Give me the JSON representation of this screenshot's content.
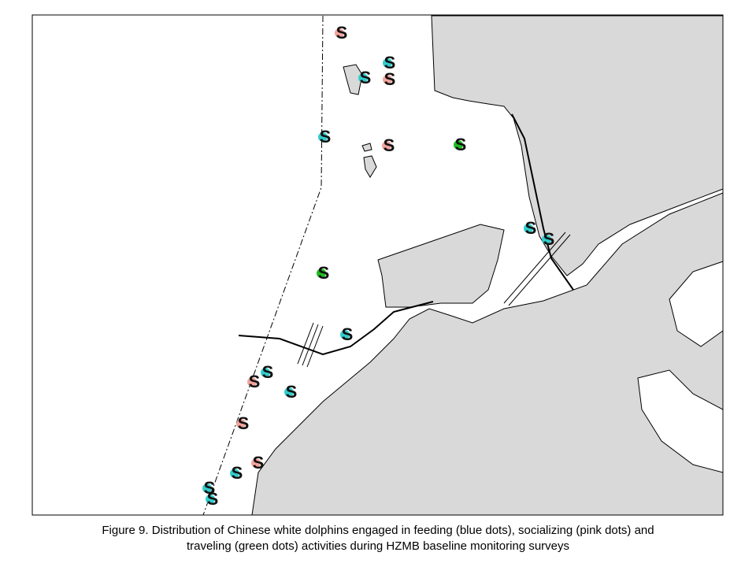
{
  "caption": {
    "line1": "Figure 9.  Distribution of Chinese white dolphins engaged in feeding (blue dots), socializing (pink dots) and",
    "line2": "traveling (green dots) activities during HZMB baseline monitoring surveys"
  },
  "sightings": [
    {
      "label": "S",
      "color": "#f2a49c"
    },
    {
      "label": "S",
      "color": "#33cccc"
    },
    {
      "label": "S",
      "color": "#33cccc"
    },
    {
      "label": "S",
      "color": "#f2a49c"
    },
    {
      "label": "S",
      "color": "#33cccc"
    },
    {
      "label": "S",
      "color": "#f2a49c"
    },
    {
      "label": "S",
      "color": "#22bb22"
    },
    {
      "label": "S",
      "color": "#33cccc"
    },
    {
      "label": "S",
      "color": "#33cccc"
    },
    {
      "label": "S",
      "color": "#22bb22"
    },
    {
      "label": "S",
      "color": "#33cccc"
    },
    {
      "label": "S",
      "color": "#33cccc"
    },
    {
      "label": "S",
      "color": "#f2a49c"
    },
    {
      "label": "S",
      "color": "#33cccc"
    },
    {
      "label": "S",
      "color": "#f2a49c"
    },
    {
      "label": "S",
      "color": "#f2a49c"
    },
    {
      "label": "S",
      "color": "#33cccc"
    },
    {
      "label": "S",
      "color": "#33cccc"
    },
    {
      "label": "S",
      "color": "#33cccc"
    }
  ]
}
